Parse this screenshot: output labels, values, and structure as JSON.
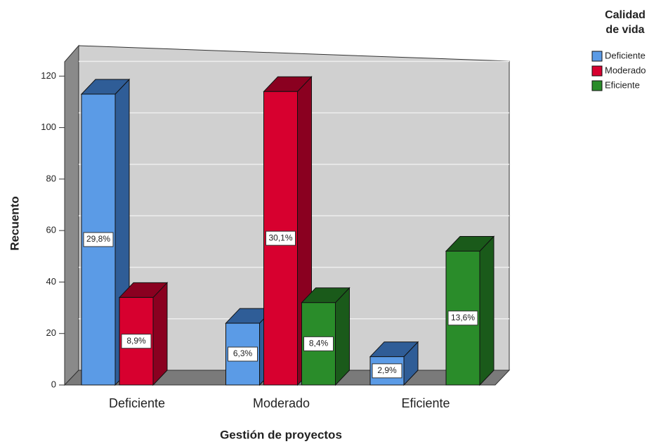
{
  "chart_data": {
    "type": "bar3d",
    "x_label": "Gestión de proyectos",
    "y_label": "Recuento",
    "categories": [
      "Deficiente",
      "Moderado",
      "Eficiente"
    ],
    "legend_title": [
      "Calidad",
      "de vida"
    ],
    "series": [
      {
        "name": "Deficiente",
        "color": "#5b9be6",
        "dark": "#2f5d97",
        "values": [
          113,
          24,
          11
        ],
        "percent_labels": [
          "29,8%",
          "6,3%",
          "2,9%"
        ]
      },
      {
        "name": "Moderado",
        "color": "#d7002f",
        "dark": "#8a0020",
        "values": [
          34,
          114,
          null
        ],
        "percent_labels": [
          "8,9%",
          "30,1%",
          null
        ]
      },
      {
        "name": "Eficiente",
        "color": "#2a8c2a",
        "dark": "#1a5a1a",
        "values": [
          null,
          32,
          52
        ],
        "percent_labels": [
          null,
          "8,4%",
          "13,6%"
        ]
      }
    ],
    "ylim": [
      0,
      125
    ],
    "yticks": [
      0,
      20,
      40,
      60,
      80,
      100,
      120
    ],
    "grid": true
  }
}
